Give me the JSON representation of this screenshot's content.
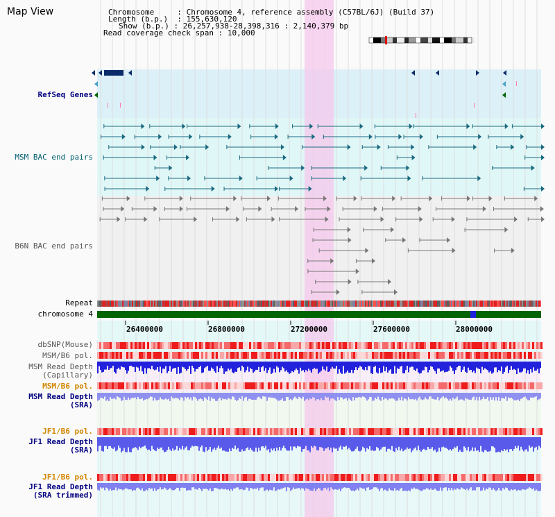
{
  "title": "Map View",
  "info": {
    "chromosome_key": "Chromosome",
    "chromosome_val": "Chromosome 4, reference assembly (C57BL/6J) (Build 37)",
    "length_key": "Length (b.p.)",
    "length_val": "155,630,120",
    "show_key": "Show (b.p.)",
    "show_val": "26,257,938-28,398,316 : 2,140,379 bp",
    "span_key": "Read coverage check span",
    "span_val": "10,000"
  },
  "tracks": {
    "refseq": "RefSeq Genes",
    "msm_bac": "MSM BAC end pairs",
    "b6n_bac": "B6N BAC end pairs",
    "repeat": "Repeat",
    "chromosome": "chromosome 4",
    "dbsnp": "dbSNP(Mouse)",
    "msm_b6_pol_1": "MSM/B6 pol.",
    "msm_read_depth_cap_1": "MSM Read Depth",
    "msm_read_depth_cap_2": "(Capillary)",
    "msm_b6_pol_2": "MSM/B6 pol.",
    "msm_read_depth_sra_1": "MSM Read Depth",
    "msm_read_depth_sra_2": "(SRA)",
    "jf1_b6_pol_1": "JF1/B6 pol.",
    "jf1_read_depth_1": "JF1 Read Depth",
    "jf1_read_depth_2": "(SRA)",
    "jf1_b6_pol_2": "JF1/B6 pol.",
    "jf1_read_depth_trim_1": "JF1 Read Depth",
    "jf1_read_depth_trim_2": "(SRA trimmed)"
  },
  "axis": {
    "ticks": [
      "26400000",
      "26800000",
      "27200000",
      "27600000",
      "28000000"
    ]
  },
  "colors": {
    "highlight": "#f6d3ee",
    "refseq_bg": "#dcf0f8",
    "bac_bg": "#e0f7f7",
    "chromosome": "#006400",
    "depth_blue": "#1a1ae6",
    "depth_light": "#8a8af0",
    "pol_red": "#ee2020"
  }
}
